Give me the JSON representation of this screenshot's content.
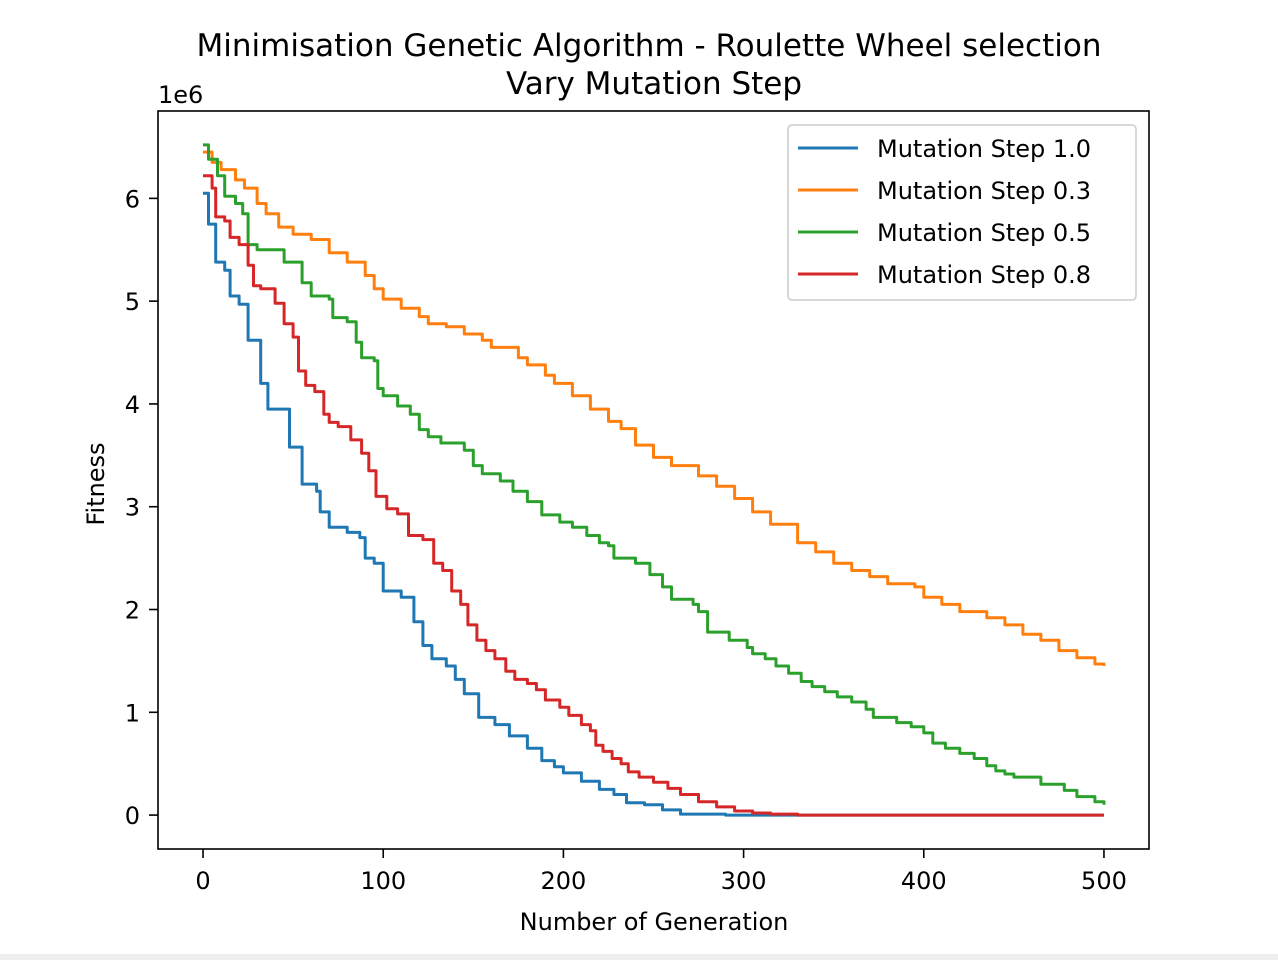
{
  "chart_data": {
    "type": "line",
    "title": "Minimisation Genetic Algorithm - Roulette Wheel selection",
    "subtitle": "Vary Mutation Step",
    "xlabel": "Number of Generation",
    "ylabel": "Fitness",
    "y_offset_label": "1e6",
    "xlim": [
      -25,
      525
    ],
    "ylim": [
      -0.33,
      6.85
    ],
    "x_ticks": [
      0,
      100,
      200,
      300,
      400,
      500
    ],
    "y_ticks": [
      0,
      1,
      2,
      3,
      4,
      5,
      6
    ],
    "grid": false,
    "legend_position": "top-right",
    "series": [
      {
        "name": "Mutation Step 1.0",
        "color": "#1f77b4",
        "points": [
          [
            0,
            6.05
          ],
          [
            3,
            5.75
          ],
          [
            7,
            5.38
          ],
          [
            12,
            5.3
          ],
          [
            15,
            5.05
          ],
          [
            20,
            4.97
          ],
          [
            25,
            4.62
          ],
          [
            32,
            4.2
          ],
          [
            36,
            3.95
          ],
          [
            48,
            3.58
          ],
          [
            55,
            3.22
          ],
          [
            63,
            3.15
          ],
          [
            65,
            2.95
          ],
          [
            70,
            2.8
          ],
          [
            80,
            2.75
          ],
          [
            87,
            2.7
          ],
          [
            90,
            2.5
          ],
          [
            95,
            2.45
          ],
          [
            100,
            2.18
          ],
          [
            110,
            2.12
          ],
          [
            117,
            1.88
          ],
          [
            122,
            1.65
          ],
          [
            127,
            1.52
          ],
          [
            135,
            1.45
          ],
          [
            140,
            1.32
          ],
          [
            145,
            1.18
          ],
          [
            153,
            0.95
          ],
          [
            162,
            0.88
          ],
          [
            170,
            0.77
          ],
          [
            180,
            0.65
          ],
          [
            188,
            0.53
          ],
          [
            195,
            0.47
          ],
          [
            200,
            0.41
          ],
          [
            210,
            0.33
          ],
          [
            220,
            0.25
          ],
          [
            228,
            0.2
          ],
          [
            235,
            0.12
          ],
          [
            245,
            0.1
          ],
          [
            255,
            0.05
          ],
          [
            265,
            0.01
          ],
          [
            290,
            0.0
          ],
          [
            500,
            0.0
          ]
        ]
      },
      {
        "name": "Mutation Step 0.3",
        "color": "#ff7f0e",
        "points": [
          [
            0,
            6.45
          ],
          [
            5,
            6.35
          ],
          [
            10,
            6.28
          ],
          [
            18,
            6.18
          ],
          [
            23,
            6.1
          ],
          [
            30,
            5.95
          ],
          [
            35,
            5.85
          ],
          [
            42,
            5.72
          ],
          [
            50,
            5.65
          ],
          [
            60,
            5.6
          ],
          [
            70,
            5.47
          ],
          [
            80,
            5.38
          ],
          [
            90,
            5.25
          ],
          [
            95,
            5.12
          ],
          [
            100,
            5.02
          ],
          [
            110,
            4.93
          ],
          [
            120,
            4.85
          ],
          [
            125,
            4.78
          ],
          [
            135,
            4.75
          ],
          [
            145,
            4.68
          ],
          [
            155,
            4.62
          ],
          [
            160,
            4.55
          ],
          [
            175,
            4.45
          ],
          [
            180,
            4.38
          ],
          [
            190,
            4.28
          ],
          [
            195,
            4.2
          ],
          [
            205,
            4.08
          ],
          [
            215,
            3.95
          ],
          [
            225,
            3.83
          ],
          [
            232,
            3.76
          ],
          [
            240,
            3.6
          ],
          [
            250,
            3.48
          ],
          [
            260,
            3.4
          ],
          [
            275,
            3.3
          ],
          [
            285,
            3.2
          ],
          [
            295,
            3.08
          ],
          [
            305,
            2.95
          ],
          [
            315,
            2.83
          ],
          [
            330,
            2.65
          ],
          [
            340,
            2.56
          ],
          [
            350,
            2.45
          ],
          [
            360,
            2.38
          ],
          [
            370,
            2.32
          ],
          [
            380,
            2.25
          ],
          [
            395,
            2.22
          ],
          [
            400,
            2.12
          ],
          [
            410,
            2.05
          ],
          [
            420,
            1.98
          ],
          [
            435,
            1.92
          ],
          [
            445,
            1.85
          ],
          [
            455,
            1.76
          ],
          [
            465,
            1.7
          ],
          [
            475,
            1.6
          ],
          [
            485,
            1.53
          ],
          [
            495,
            1.47
          ],
          [
            500,
            1.45
          ]
        ]
      },
      {
        "name": "Mutation Step 0.5",
        "color": "#2ca02c",
        "points": [
          [
            0,
            6.52
          ],
          [
            3,
            6.38
          ],
          [
            8,
            6.22
          ],
          [
            12,
            6.02
          ],
          [
            18,
            5.95
          ],
          [
            22,
            5.85
          ],
          [
            25,
            5.55
          ],
          [
            30,
            5.5
          ],
          [
            45,
            5.38
          ],
          [
            55,
            5.18
          ],
          [
            60,
            5.05
          ],
          [
            70,
            5.02
          ],
          [
            72,
            4.84
          ],
          [
            80,
            4.8
          ],
          [
            85,
            4.6
          ],
          [
            88,
            4.45
          ],
          [
            95,
            4.42
          ],
          [
            97,
            4.15
          ],
          [
            100,
            4.08
          ],
          [
            108,
            3.98
          ],
          [
            115,
            3.9
          ],
          [
            120,
            3.75
          ],
          [
            125,
            3.68
          ],
          [
            132,
            3.62
          ],
          [
            145,
            3.55
          ],
          [
            150,
            3.4
          ],
          [
            155,
            3.32
          ],
          [
            165,
            3.25
          ],
          [
            172,
            3.15
          ],
          [
            180,
            3.05
          ],
          [
            188,
            2.92
          ],
          [
            198,
            2.85
          ],
          [
            205,
            2.8
          ],
          [
            213,
            2.72
          ],
          [
            220,
            2.65
          ],
          [
            225,
            2.62
          ],
          [
            228,
            2.5
          ],
          [
            240,
            2.45
          ],
          [
            248,
            2.34
          ],
          [
            255,
            2.22
          ],
          [
            260,
            2.1
          ],
          [
            272,
            2.05
          ],
          [
            275,
            1.98
          ],
          [
            280,
            1.78
          ],
          [
            292,
            1.7
          ],
          [
            302,
            1.63
          ],
          [
            305,
            1.57
          ],
          [
            312,
            1.52
          ],
          [
            318,
            1.45
          ],
          [
            325,
            1.38
          ],
          [
            332,
            1.3
          ],
          [
            338,
            1.25
          ],
          [
            345,
            1.2
          ],
          [
            352,
            1.15
          ],
          [
            360,
            1.1
          ],
          [
            368,
            1.03
          ],
          [
            372,
            0.95
          ],
          [
            385,
            0.9
          ],
          [
            393,
            0.86
          ],
          [
            400,
            0.8
          ],
          [
            405,
            0.7
          ],
          [
            412,
            0.65
          ],
          [
            420,
            0.6
          ],
          [
            428,
            0.55
          ],
          [
            435,
            0.48
          ],
          [
            440,
            0.43
          ],
          [
            445,
            0.4
          ],
          [
            450,
            0.37
          ],
          [
            465,
            0.3
          ],
          [
            478,
            0.24
          ],
          [
            485,
            0.18
          ],
          [
            495,
            0.13
          ],
          [
            500,
            0.1
          ]
        ]
      },
      {
        "name": "Mutation Step 0.8",
        "color": "#d62728",
        "points": [
          [
            0,
            6.22
          ],
          [
            5,
            6.1
          ],
          [
            7,
            5.82
          ],
          [
            12,
            5.78
          ],
          [
            15,
            5.62
          ],
          [
            20,
            5.55
          ],
          [
            25,
            5.35
          ],
          [
            28,
            5.15
          ],
          [
            32,
            5.12
          ],
          [
            40,
            4.98
          ],
          [
            45,
            4.78
          ],
          [
            50,
            4.65
          ],
          [
            53,
            4.32
          ],
          [
            57,
            4.18
          ],
          [
            62,
            4.12
          ],
          [
            67,
            3.9
          ],
          [
            70,
            3.82
          ],
          [
            75,
            3.78
          ],
          [
            82,
            3.65
          ],
          [
            88,
            3.52
          ],
          [
            92,
            3.35
          ],
          [
            96,
            3.1
          ],
          [
            102,
            2.98
          ],
          [
            108,
            2.93
          ],
          [
            114,
            2.72
          ],
          [
            122,
            2.68
          ],
          [
            128,
            2.45
          ],
          [
            133,
            2.38
          ],
          [
            138,
            2.18
          ],
          [
            143,
            2.05
          ],
          [
            147,
            1.85
          ],
          [
            152,
            1.7
          ],
          [
            157,
            1.6
          ],
          [
            162,
            1.52
          ],
          [
            168,
            1.4
          ],
          [
            173,
            1.32
          ],
          [
            180,
            1.28
          ],
          [
            185,
            1.22
          ],
          [
            190,
            1.12
          ],
          [
            198,
            1.05
          ],
          [
            203,
            0.97
          ],
          [
            210,
            0.88
          ],
          [
            215,
            0.82
          ],
          [
            218,
            0.68
          ],
          [
            222,
            0.62
          ],
          [
            227,
            0.55
          ],
          [
            232,
            0.5
          ],
          [
            236,
            0.42
          ],
          [
            242,
            0.37
          ],
          [
            250,
            0.32
          ],
          [
            258,
            0.26
          ],
          [
            265,
            0.2
          ],
          [
            275,
            0.13
          ],
          [
            285,
            0.08
          ],
          [
            295,
            0.04
          ],
          [
            305,
            0.02
          ],
          [
            315,
            0.01
          ],
          [
            330,
            0.0
          ],
          [
            500,
            0.0
          ]
        ]
      }
    ]
  }
}
